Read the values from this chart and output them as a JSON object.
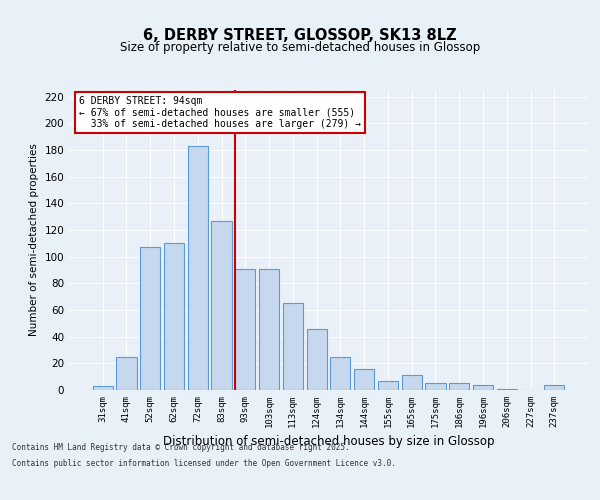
{
  "title_line1": "6, DERBY STREET, GLOSSOP, SK13 8LZ",
  "title_line2": "Size of property relative to semi-detached houses in Glossop",
  "xlabel": "Distribution of semi-detached houses by size in Glossop",
  "ylabel": "Number of semi-detached properties",
  "categories": [
    "31sqm",
    "41sqm",
    "52sqm",
    "62sqm",
    "72sqm",
    "83sqm",
    "93sqm",
    "103sqm",
    "113sqm",
    "124sqm",
    "134sqm",
    "144sqm",
    "155sqm",
    "165sqm",
    "175sqm",
    "186sqm",
    "196sqm",
    "206sqm",
    "227sqm",
    "237sqm"
  ],
  "values": [
    3,
    25,
    107,
    110,
    183,
    127,
    91,
    91,
    65,
    46,
    25,
    16,
    7,
    11,
    5,
    5,
    4,
    1,
    0,
    4
  ],
  "bar_color": "#c5d8ed",
  "bar_edge_color": "#5b9bd5",
  "pct_smaller": 67,
  "pct_larger": 33,
  "count_smaller": 555,
  "count_larger": 279,
  "ylim": [
    0,
    225
  ],
  "yticks": [
    0,
    20,
    40,
    60,
    80,
    100,
    120,
    140,
    160,
    180,
    200,
    220
  ],
  "background_color": "#e8f0f8",
  "plot_bg_color": "#eaf0f8",
  "grid_color": "#ffffff",
  "annotation_box_color": "#ffffff",
  "annotation_box_edge": "#cc0000",
  "vline_color": "#cc0000",
  "footer_line1": "Contains HM Land Registry data © Crown copyright and database right 2025.",
  "footer_line2": "Contains public sector information licensed under the Open Government Licence v3.0."
}
